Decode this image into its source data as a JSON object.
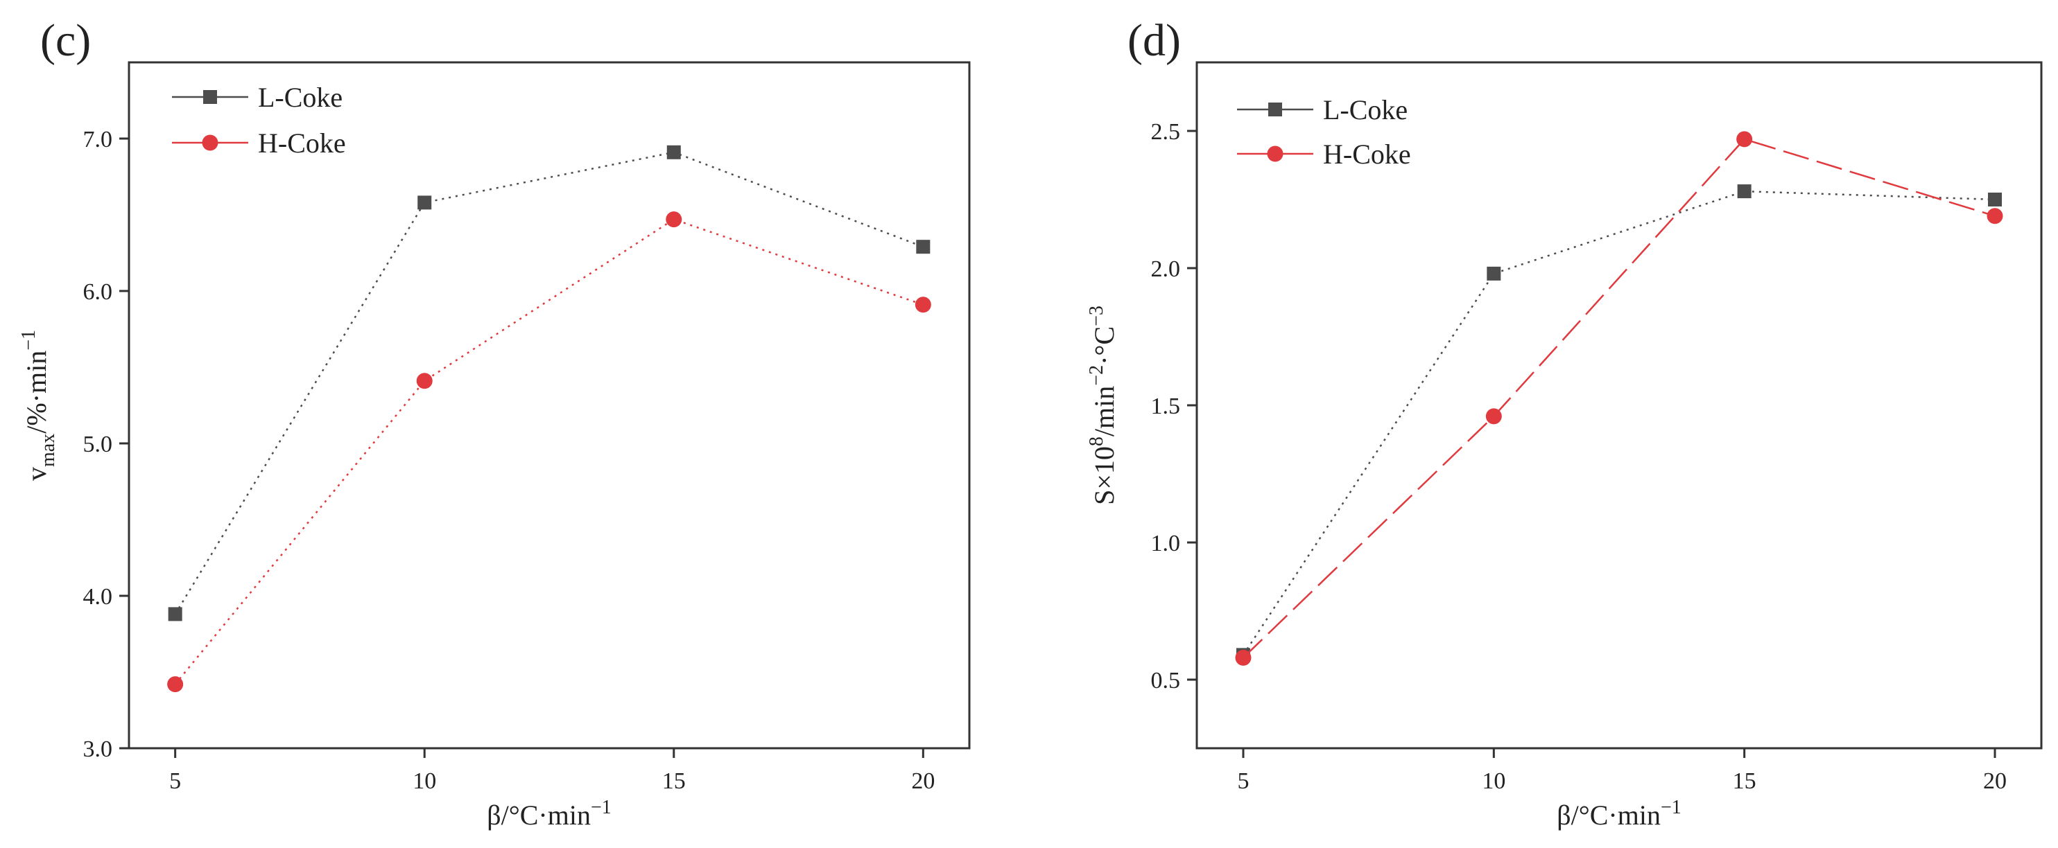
{
  "chart_data": [
    {
      "type": "line",
      "panel_label": "(c)",
      "x": [
        5,
        10,
        15,
        20
      ],
      "xticks": [
        5,
        10,
        15,
        20
      ],
      "xlabel": "β/°C·min",
      "xlabel_sup": "−1",
      "ylabel_parts": [
        "v",
        "max",
        "/%·min",
        "−1"
      ],
      "ylim": [
        3.0,
        7.5
      ],
      "yticks": [
        3.0,
        4.0,
        5.0,
        6.0,
        7.0
      ],
      "ytick_labels": [
        "3.0",
        "4.0",
        "5.0",
        "6.0",
        "7.0"
      ],
      "legend_position": "top-left",
      "series": [
        {
          "name": "L-Coke",
          "values": [
            3.88,
            6.58,
            6.91,
            6.29
          ],
          "color": "#4d4d4d",
          "marker": "square",
          "line_style": "dotted"
        },
        {
          "name": "H-Coke",
          "values": [
            3.42,
            5.41,
            6.47,
            5.91
          ],
          "color": "#e0393e",
          "marker": "circle",
          "line_style": "dotted"
        }
      ]
    },
    {
      "type": "line",
      "panel_label": "(d)",
      "x": [
        5,
        10,
        15,
        20
      ],
      "xticks": [
        5,
        10,
        15,
        20
      ],
      "xlabel": "β/°C·min",
      "xlabel_sup": "−1",
      "ylabel_parts": [
        "S×10",
        "8",
        "/min",
        "−2",
        "·°C",
        "−3"
      ],
      "ylim": [
        0.25,
        2.75
      ],
      "yticks": [
        0.5,
        1.0,
        1.5,
        2.0,
        2.5
      ],
      "ytick_labels": [
        "0.5",
        "1.0",
        "1.5",
        "2.0",
        "2.5"
      ],
      "legend_position": "top-left",
      "series": [
        {
          "name": "L-Coke",
          "values": [
            0.59,
            1.98,
            2.28,
            2.25
          ],
          "color": "#4d4d4d",
          "marker": "square",
          "line_style": "mixed"
        },
        {
          "name": "H-Coke",
          "values": [
            0.58,
            1.46,
            2.47,
            2.19
          ],
          "color": "#e0393e",
          "marker": "circle",
          "line_style": "dashed"
        }
      ]
    }
  ]
}
